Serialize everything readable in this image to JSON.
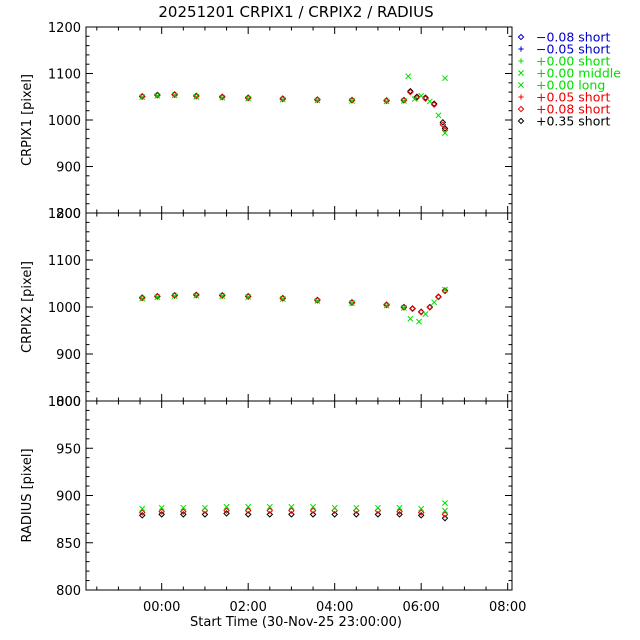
{
  "chart_data": {
    "type": "scatter",
    "title": "20251201 CRPIX1 / CRPIX2 / RADIUS",
    "xlabel": "Start Time (30-Nov-25 23:00:00)",
    "x_unit": "hours since 30-Nov-25 23:00:00",
    "xlim": [
      -0.75,
      9.1
    ],
    "x_ticks": [
      {
        "value": 1,
        "label": "00:00"
      },
      {
        "value": 3,
        "label": "02:00"
      },
      {
        "value": 5,
        "label": "04:00"
      },
      {
        "value": 7,
        "label": "06:00"
      },
      {
        "value": 9,
        "label": "08:00"
      }
    ],
    "legend_position": "top-right, outside plot",
    "legend": [
      {
        "symbol": "diamond",
        "color": "#0000cc",
        "label": "−0.08 short"
      },
      {
        "symbol": "plus",
        "color": "#0000cc",
        "label": "−0.05 short"
      },
      {
        "symbol": "plus",
        "color": "#00dd00",
        "label": "+0.00 short"
      },
      {
        "symbol": "cross",
        "color": "#00dd00",
        "label": "+0.00 middle"
      },
      {
        "symbol": "cross",
        "color": "#00dd00",
        "label": "+0.00 long"
      },
      {
        "symbol": "plus",
        "color": "#ee0000",
        "label": "+0.05 short"
      },
      {
        "symbol": "diamond",
        "color": "#ee0000",
        "label": "+0.08 short"
      },
      {
        "symbol": "diamond",
        "color": "#000000",
        "label": "+0.35 short"
      }
    ],
    "panels": [
      {
        "id": "crpix1",
        "ylabel": "CRPIX1 [pixel]",
        "ylim": [
          800,
          1200
        ],
        "y_ticks": [
          800,
          900,
          1000,
          1100,
          1200
        ],
        "series": [
          {
            "name": "black +0.35 short",
            "color": "#000000",
            "symbol": "diamond",
            "points": [
              [
                0.55,
                1051
              ],
              [
                0.9,
                1054
              ],
              [
                1.3,
                1055
              ],
              [
                1.8,
                1052
              ],
              [
                2.4,
                1050
              ],
              [
                3.0,
                1048
              ],
              [
                3.8,
                1046
              ],
              [
                4.6,
                1044
              ],
              [
                5.4,
                1043
              ],
              [
                6.2,
                1042
              ],
              [
                6.6,
                1043
              ],
              [
                6.75,
                1062
              ],
              [
                6.9,
                1050
              ],
              [
                7.1,
                1048
              ],
              [
                7.3,
                1035
              ],
              [
                7.5,
                995
              ],
              [
                7.55,
                982
              ]
            ]
          },
          {
            "name": "red +0.05/+0.08 short",
            "color": "#ee0000",
            "symbol": "diamond",
            "points": [
              [
                0.55,
                1050
              ],
              [
                0.9,
                1053
              ],
              [
                1.3,
                1054
              ],
              [
                1.8,
                1051
              ],
              [
                2.4,
                1049
              ],
              [
                3.0,
                1047
              ],
              [
                3.8,
                1045
              ],
              [
                4.6,
                1043
              ],
              [
                5.4,
                1042
              ],
              [
                6.2,
                1041
              ],
              [
                6.6,
                1042
              ],
              [
                6.75,
                1060
              ],
              [
                6.9,
                1048
              ],
              [
                7.1,
                1046
              ],
              [
                7.3,
                1033
              ],
              [
                7.5,
                990
              ],
              [
                7.55,
                978
              ]
            ]
          },
          {
            "name": "green +0.00",
            "color": "#00dd00",
            "symbol": "cross",
            "points": [
              [
                0.55,
                1049
              ],
              [
                0.9,
                1052
              ],
              [
                1.3,
                1053
              ],
              [
                1.8,
                1050
              ],
              [
                2.4,
                1048
              ],
              [
                3.0,
                1046
              ],
              [
                3.8,
                1044
              ],
              [
                4.6,
                1042
              ],
              [
                5.4,
                1041
              ],
              [
                6.2,
                1040
              ],
              [
                6.6,
                1041
              ],
              [
                6.7,
                1094
              ],
              [
                6.85,
                1045
              ],
              [
                7.0,
                1052
              ],
              [
                7.2,
                1040
              ],
              [
                7.4,
                1010
              ],
              [
                7.55,
                1090
              ],
              [
                7.55,
                972
              ]
            ]
          }
        ]
      },
      {
        "id": "crpix2",
        "ylabel": "CRPIX2 [pixel]",
        "ylim": [
          800,
          1200
        ],
        "y_ticks": [
          800,
          900,
          1000,
          1100,
          1200
        ],
        "series": [
          {
            "name": "black +0.35 short",
            "color": "#000000",
            "symbol": "diamond",
            "points": [
              [
                0.55,
                1020
              ],
              [
                0.9,
                1023
              ],
              [
                1.3,
                1025
              ],
              [
                1.8,
                1026
              ],
              [
                2.4,
                1025
              ],
              [
                3.0,
                1023
              ],
              [
                3.8,
                1019
              ],
              [
                4.6,
                1015
              ],
              [
                5.4,
                1010
              ],
              [
                6.2,
                1005
              ],
              [
                6.6,
                1000
              ],
              [
                6.8,
                997
              ],
              [
                7.0,
                990
              ],
              [
                7.2,
                1000
              ],
              [
                7.4,
                1022
              ],
              [
                7.55,
                1035
              ]
            ]
          },
          {
            "name": "red +0.05/+0.08 short",
            "color": "#ee0000",
            "symbol": "diamond",
            "points": [
              [
                0.55,
                1019
              ],
              [
                0.9,
                1022
              ],
              [
                1.3,
                1024
              ],
              [
                1.8,
                1025
              ],
              [
                2.4,
                1024
              ],
              [
                3.0,
                1022
              ],
              [
                3.8,
                1018
              ],
              [
                4.6,
                1014
              ],
              [
                5.4,
                1009
              ],
              [
                6.2,
                1004
              ],
              [
                6.6,
                999
              ],
              [
                6.8,
                996
              ],
              [
                7.0,
                989
              ],
              [
                7.2,
                999
              ],
              [
                7.4,
                1021
              ],
              [
                7.55,
                1034
              ]
            ]
          },
          {
            "name": "green +0.00",
            "color": "#00dd00",
            "symbol": "cross",
            "points": [
              [
                0.55,
                1018
              ],
              [
                0.9,
                1021
              ],
              [
                1.3,
                1023
              ],
              [
                1.8,
                1024
              ],
              [
                2.4,
                1023
              ],
              [
                3.0,
                1021
              ],
              [
                3.8,
                1017
              ],
              [
                4.6,
                1013
              ],
              [
                5.4,
                1008
              ],
              [
                6.2,
                1003
              ],
              [
                6.6,
                998
              ],
              [
                6.75,
                975
              ],
              [
                6.95,
                969
              ],
              [
                7.1,
                985
              ],
              [
                7.3,
                1010
              ],
              [
                7.55,
                1037
              ]
            ]
          }
        ]
      },
      {
        "id": "radius",
        "ylabel": "RADIUS [pixel]",
        "ylim": [
          800,
          1000
        ],
        "y_ticks": [
          800,
          850,
          900,
          950,
          1000
        ],
        "series": [
          {
            "name": "black +0.35 short",
            "color": "#000000",
            "symbol": "diamond",
            "points": [
              [
                0.55,
                879
              ],
              [
                1.0,
                880
              ],
              [
                1.5,
                880
              ],
              [
                2.0,
                880
              ],
              [
                2.5,
                881
              ],
              [
                3.0,
                880
              ],
              [
                3.5,
                880
              ],
              [
                4.0,
                880
              ],
              [
                4.5,
                880
              ],
              [
                5.0,
                880
              ],
              [
                5.5,
                880
              ],
              [
                6.0,
                880
              ],
              [
                6.5,
                880
              ],
              [
                7.0,
                879
              ],
              [
                7.55,
                876
              ]
            ]
          },
          {
            "name": "red +0.05/+0.08 short",
            "color": "#ee0000",
            "symbol": "diamond",
            "points": [
              [
                0.55,
                882
              ],
              [
                1.0,
                883
              ],
              [
                1.5,
                883
              ],
              [
                2.0,
                884
              ],
              [
                2.5,
                884
              ],
              [
                3.0,
                884
              ],
              [
                3.5,
                884
              ],
              [
                4.0,
                884
              ],
              [
                4.5,
                884
              ],
              [
                5.0,
                884
              ],
              [
                5.5,
                884
              ],
              [
                6.0,
                884
              ],
              [
                6.5,
                883
              ],
              [
                7.0,
                882
              ],
              [
                7.55,
                880
              ]
            ]
          },
          {
            "name": "green +0.00",
            "color": "#00dd00",
            "symbol": "cross",
            "points": [
              [
                0.55,
                886
              ],
              [
                1.0,
                887
              ],
              [
                1.5,
                887
              ],
              [
                2.0,
                887
              ],
              [
                2.5,
                888
              ],
              [
                3.0,
                888
              ],
              [
                3.5,
                888
              ],
              [
                4.0,
                888
              ],
              [
                4.5,
                888
              ],
              [
                5.0,
                887
              ],
              [
                5.5,
                887
              ],
              [
                6.0,
                887
              ],
              [
                6.5,
                887
              ],
              [
                7.0,
                886
              ],
              [
                7.55,
                892
              ],
              [
                7.55,
                884
              ]
            ]
          }
        ]
      }
    ]
  }
}
